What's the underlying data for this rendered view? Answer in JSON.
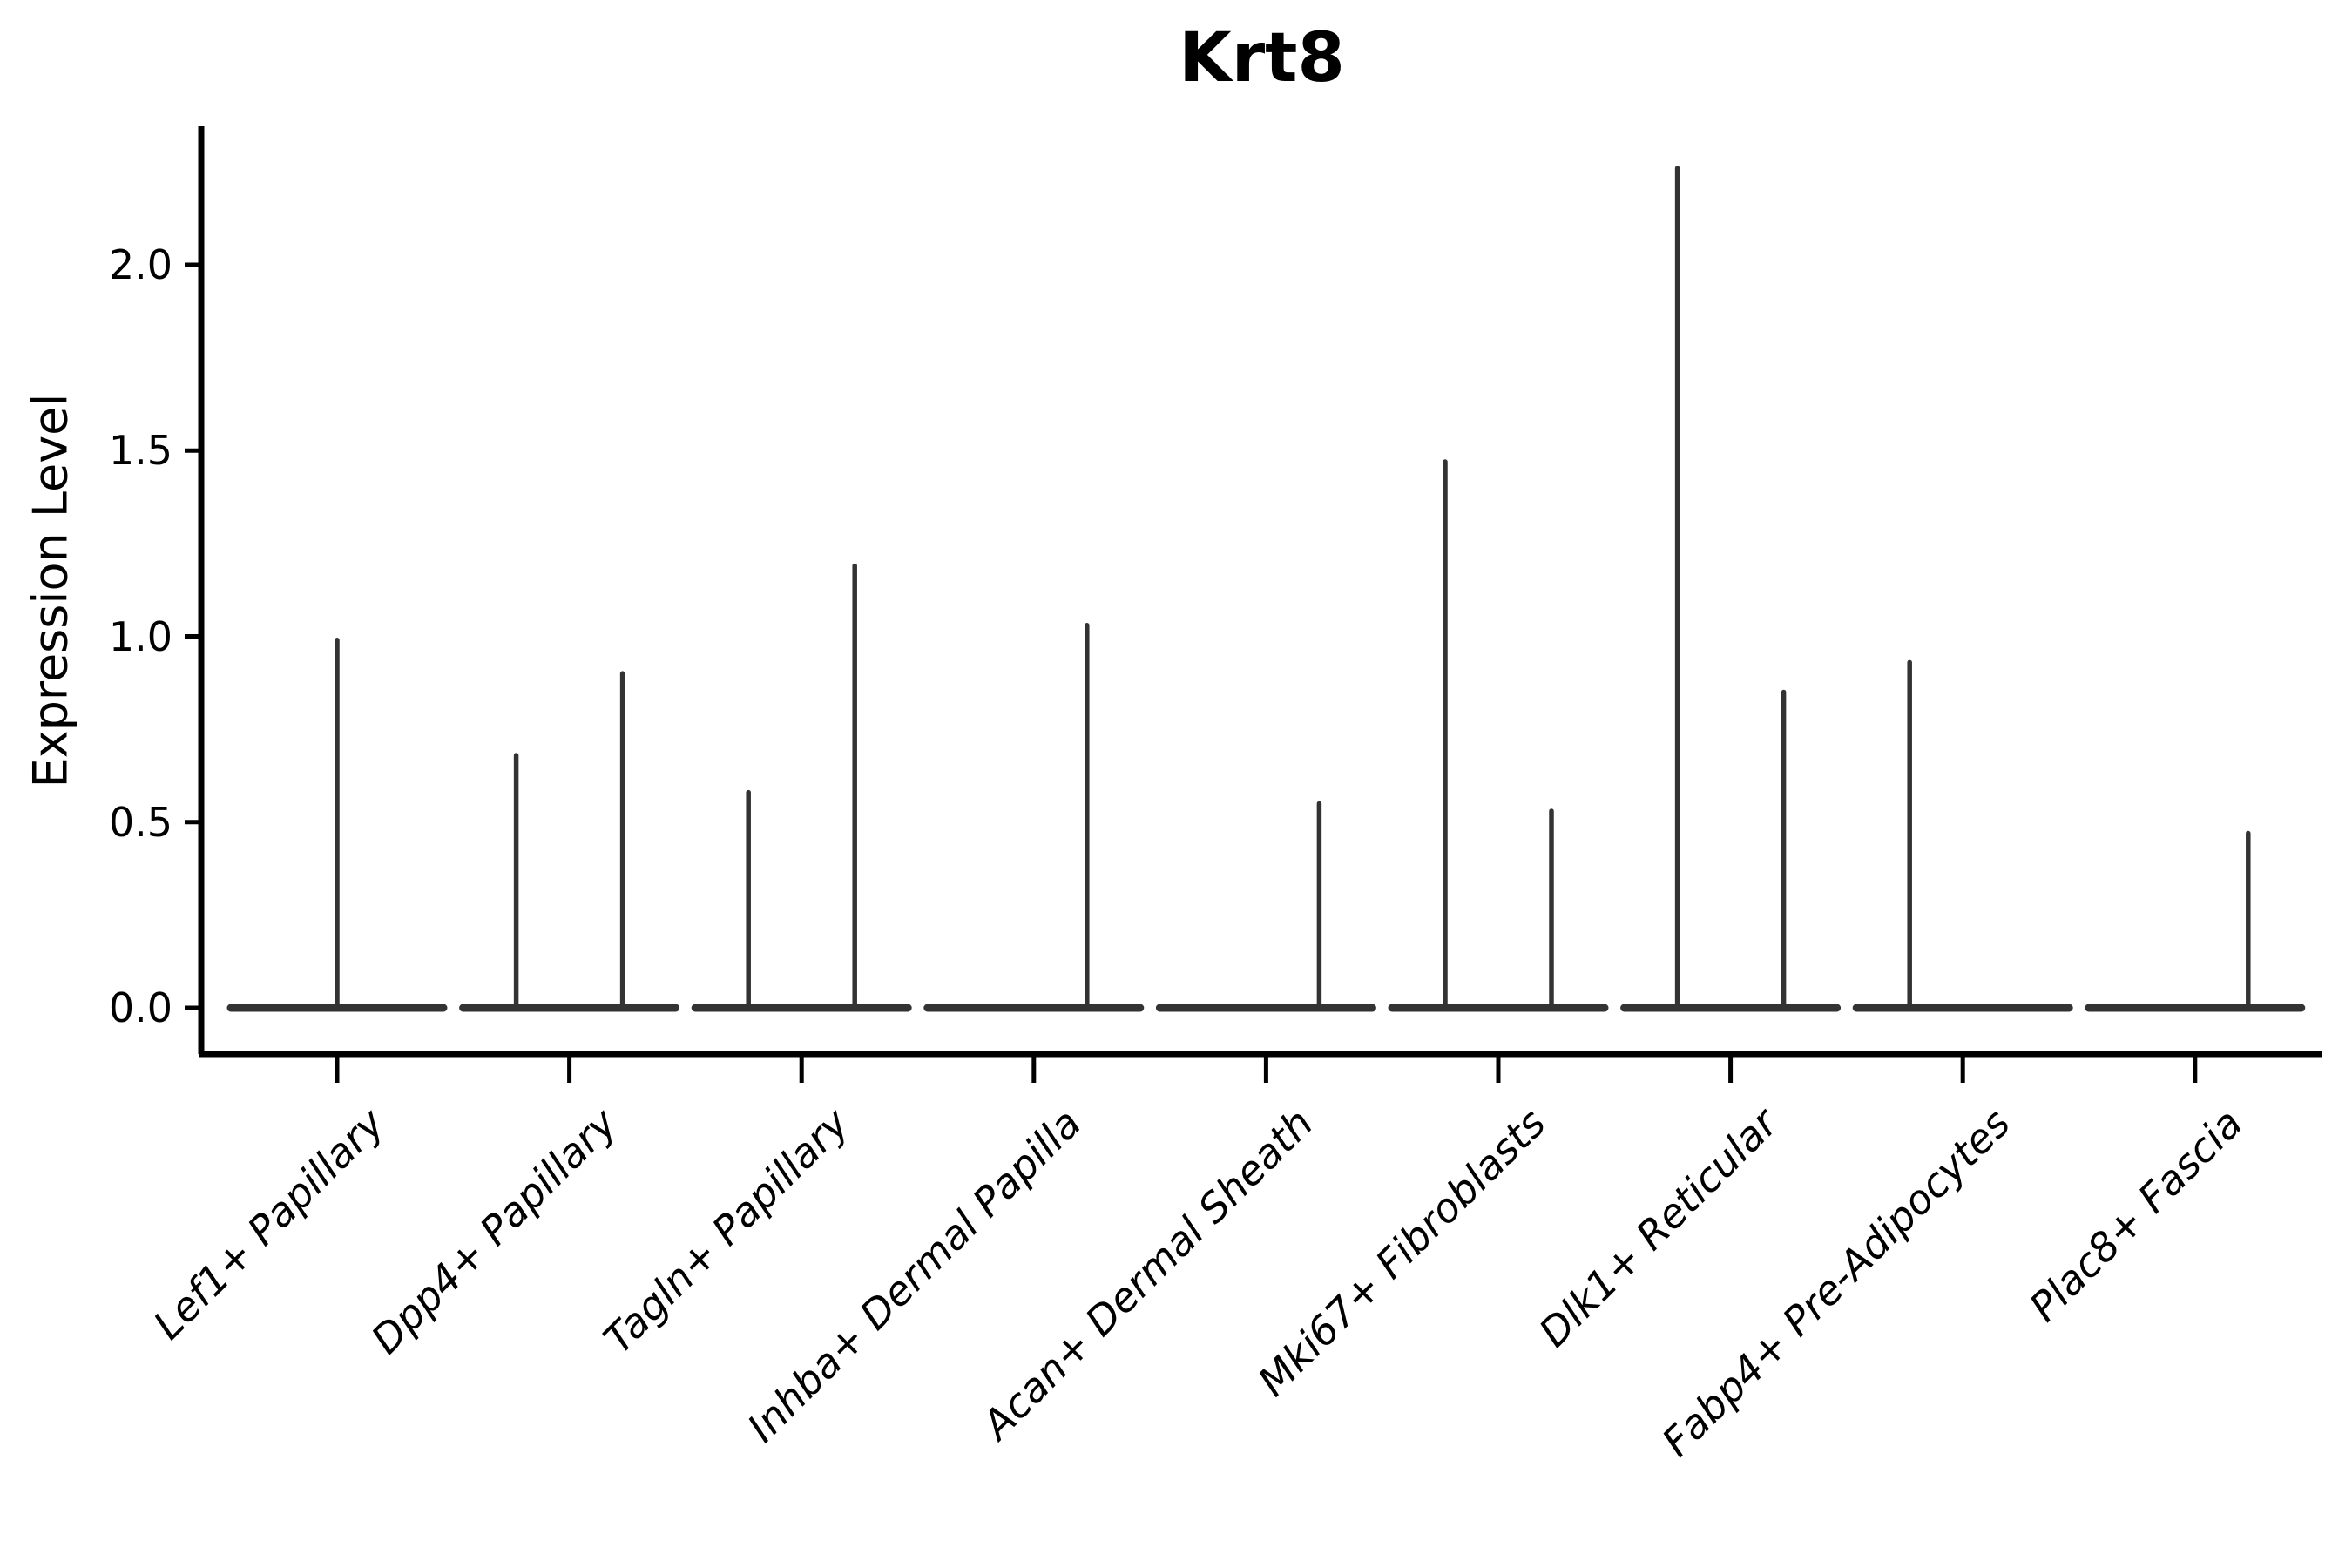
{
  "title": "Krt8",
  "chart_data": {
    "type": "violin",
    "title": "Krt8",
    "ylabel": "Expression Level",
    "xlabel": "",
    "ytick_labels": [
      "0.0",
      "0.5",
      "1.0",
      "1.5",
      "2.0"
    ],
    "ytick_values": [
      0.0,
      0.5,
      1.0,
      1.5,
      2.0
    ],
    "ylim": [
      -0.12,
      2.37
    ],
    "grid": false,
    "legend": false,
    "colors": {
      "violin_stroke": "#333333",
      "axis": "#000000",
      "text": "#000000",
      "background": "#ffffff"
    },
    "categories": [
      "Lef1+ Papillary",
      "Dpp4+ Papillary",
      "Tagln+ Papillary",
      "Inhba+ Dermal Papilla",
      "Acan+ Dermal Sheath",
      "Mki67+ Fibroblasts",
      "Dlk1+ Reticular",
      "Fabp4+ Pre-Adipocytes",
      "Plac8+ Fascia"
    ],
    "violins": [
      {
        "category": "Lef1+ Papillary",
        "spikes": [
          {
            "position": "center",
            "max": 0.99
          }
        ]
      },
      {
        "category": "Dpp4+ Papillary",
        "spikes": [
          {
            "position": "left",
            "max": 0.68
          },
          {
            "position": "right",
            "max": 0.9
          }
        ]
      },
      {
        "category": "Tagln+ Papillary",
        "spikes": [
          {
            "position": "left",
            "max": 0.58
          },
          {
            "position": "right",
            "max": 1.19
          }
        ]
      },
      {
        "category": "Inhba+ Dermal Papilla",
        "spikes": [
          {
            "position": "right",
            "max": 1.03
          }
        ]
      },
      {
        "category": "Acan+ Dermal Sheath",
        "spikes": [
          {
            "position": "right",
            "max": 0.55
          }
        ]
      },
      {
        "category": "Mki67+ Fibroblasts",
        "spikes": [
          {
            "position": "left",
            "max": 1.47
          },
          {
            "position": "right",
            "max": 0.53
          }
        ]
      },
      {
        "category": "Dlk1+ Reticular",
        "spikes": [
          {
            "position": "left",
            "max": 2.26
          },
          {
            "position": "right",
            "max": 0.85
          }
        ]
      },
      {
        "category": "Fabp4+ Pre-Adipocytes",
        "spikes": [
          {
            "position": "left",
            "max": 0.93
          }
        ]
      },
      {
        "category": "Plac8+ Fascia",
        "spikes": [
          {
            "position": "right",
            "max": 0.47
          }
        ]
      }
    ]
  }
}
